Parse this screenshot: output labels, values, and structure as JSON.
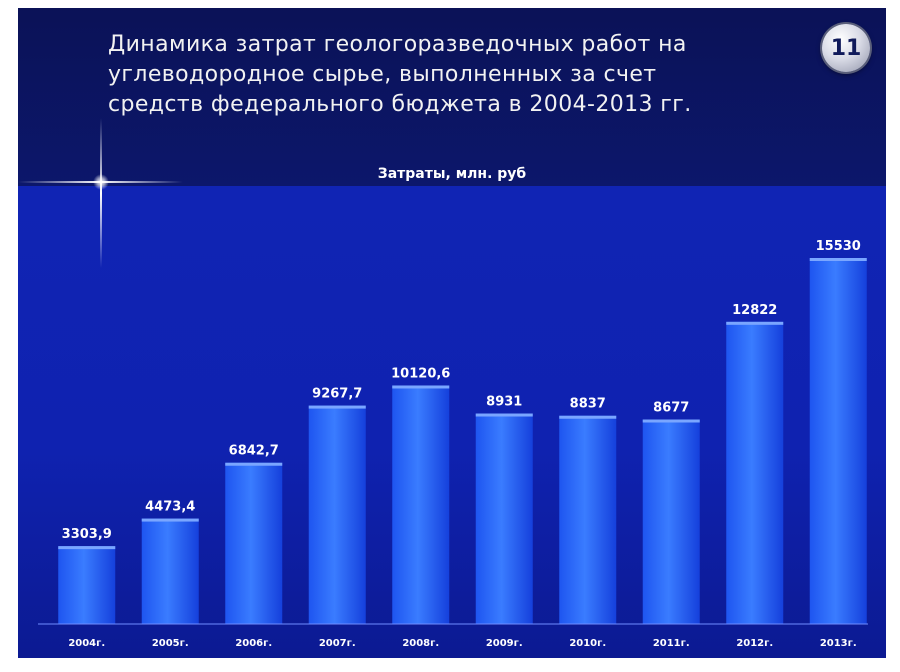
{
  "slide": {
    "title": "Динамика  затрат геологоразведочных  работ на\nуглеводородное  сырье, выполненных  за счет\nсредств федерального  бюджета в 2004-2013  гг.",
    "number": "11"
  },
  "chart_data": {
    "type": "bar",
    "title": "Затраты, млн. руб",
    "categories": [
      "2004г.",
      "2005г.",
      "2006г.",
      "2007г.",
      "2008г.",
      "2009г.",
      "2010г.",
      "2011г.",
      "2012г.",
      "2013г."
    ],
    "values": [
      3303.9,
      4473.4,
      6842.7,
      9267.7,
      10120.6,
      8931,
      8837,
      8677,
      12822,
      15530
    ],
    "value_labels": [
      "3303,9",
      "4473,4",
      "6842,7",
      "9267,7",
      "10120,6",
      "8931",
      "8837",
      "8677",
      "12822",
      "15530"
    ],
    "ylim": [
      0,
      15530
    ],
    "grid": false,
    "legend": "none",
    "colors": {
      "bar_top": "#2f72ff",
      "bar_bottom": "#0d3fe6",
      "label": "#ffffff"
    }
  }
}
